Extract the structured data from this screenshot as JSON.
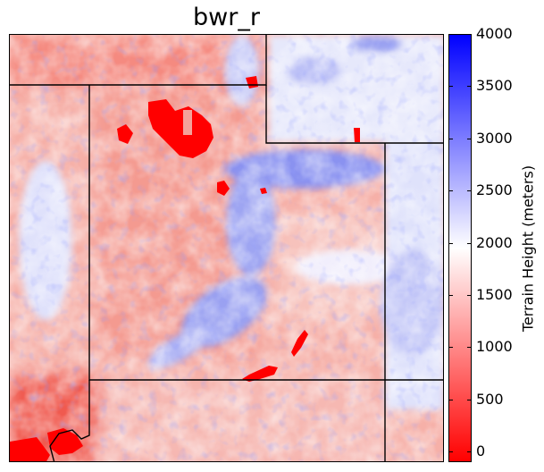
{
  "title": "bwr_r",
  "colorbar": {
    "label": "Terrain Height (meters)",
    "cmap": "bwr_r",
    "range": [
      -100,
      4000
    ],
    "ticks": [
      "4000",
      "3500",
      "3000",
      "2500",
      "2000",
      "1500",
      "1000",
      "500",
      "0"
    ],
    "tick_values": [
      4000,
      3500,
      3000,
      2500,
      2000,
      1500,
      1000,
      500,
      0
    ],
    "colors": {
      "low": "#ff0000",
      "mid": "#ffffff",
      "high": "#0000ff"
    }
  },
  "map": {
    "content": "terrain height raster with state boundary lines",
    "boundary_color": "#000000"
  }
}
